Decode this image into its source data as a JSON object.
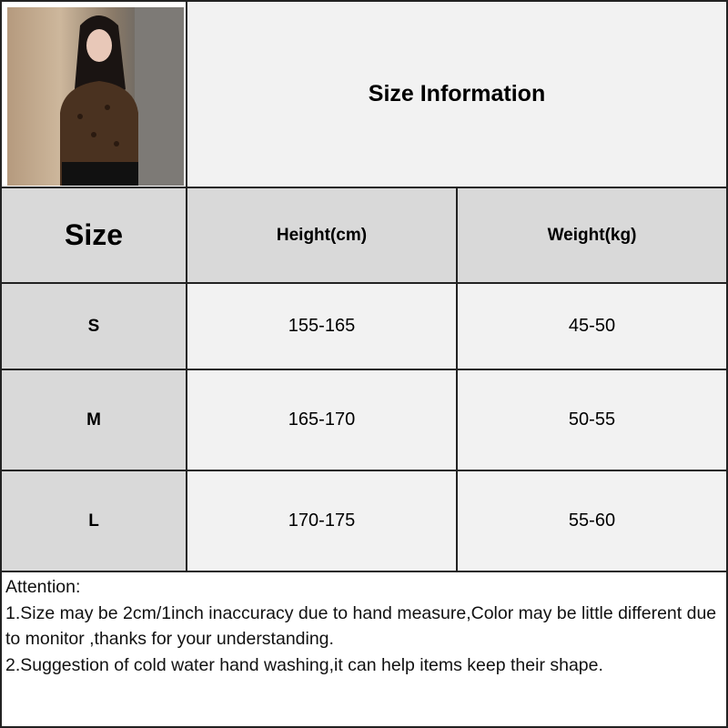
{
  "title": "Size Information",
  "product_photo": "woman-in-leopard-print-top",
  "table": {
    "headers": [
      "Size",
      "Height(cm)",
      "Weight(kg)"
    ],
    "rows": [
      {
        "size": "S",
        "height": "155-165",
        "weight": "45-50"
      },
      {
        "size": "M",
        "height": "165-170",
        "weight": "50-55"
      },
      {
        "size": "L",
        "height": "170-175",
        "weight": "55-60"
      }
    ]
  },
  "attention": {
    "heading": "Attention:",
    "line1": "1.Size may be 2cm/1inch inaccuracy due to hand measure,Color may be little different due to monitor ,thanks for your understanding.",
    "line2": "2.Suggestion of cold water hand washing,it can help items keep their shape."
  },
  "colors": {
    "header_gray": "#d9d9d9",
    "cell_light": "#f2f2f2",
    "border": "#222222"
  }
}
